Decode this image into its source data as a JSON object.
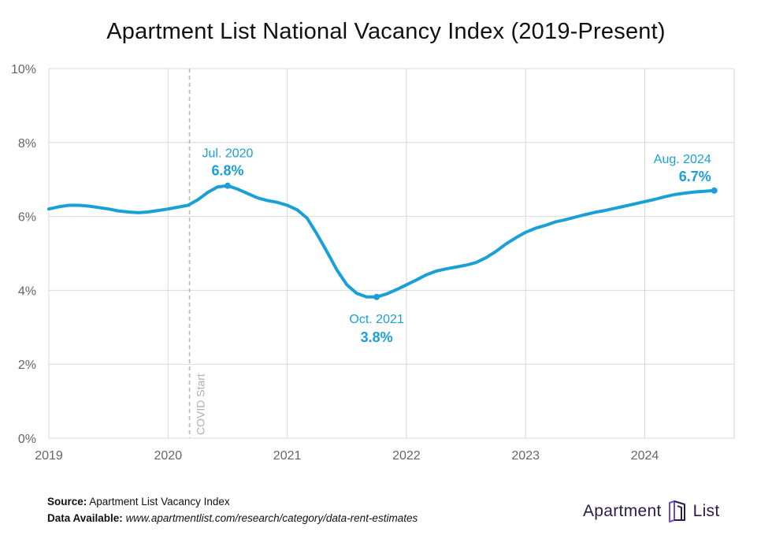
{
  "title": "Apartment List National Vacancy Index (2019-Present)",
  "footer": {
    "source_label": "Source:",
    "source_text": "Apartment List Vacancy Index",
    "data_label": "Data Available:",
    "data_url": "www.apartmentlist.com/research/category/data-rent-estimates"
  },
  "brand": {
    "word1": "Apartment",
    "word2": "List",
    "color": "#2b1b4d"
  },
  "chart_data": {
    "type": "line",
    "title": "Apartment List National Vacancy Index (2019-Present)",
    "xlabel": "",
    "ylabel": "",
    "xlim": [
      2019.0,
      2024.75
    ],
    "ylim": [
      0,
      10
    ],
    "grid": true,
    "line_color": "#1a9fd6",
    "x_ticks": [
      2019,
      2020,
      2021,
      2022,
      2023,
      2024
    ],
    "x_tick_labels": [
      "2019",
      "2020",
      "2021",
      "2022",
      "2023",
      "2024"
    ],
    "y_ticks": [
      0,
      2,
      4,
      6,
      8,
      10
    ],
    "y_tick_labels": [
      "0%",
      "2%",
      "4%",
      "6%",
      "8%",
      "10%"
    ],
    "reference_line": {
      "x": 2020.18,
      "label": "COVID Start"
    },
    "series": [
      {
        "x": [
          2019.0,
          2019.083,
          2019.167,
          2019.25,
          2019.333,
          2019.417,
          2019.5,
          2019.583,
          2019.667,
          2019.75,
          2019.833,
          2019.917,
          2020.0,
          2020.083,
          2020.167,
          2020.25,
          2020.333,
          2020.417,
          2020.5,
          2020.583,
          2020.667,
          2020.75,
          2020.833,
          2020.917,
          2021.0,
          2021.083,
          2021.167,
          2021.25,
          2021.333,
          2021.417,
          2021.5,
          2021.583,
          2021.667,
          2021.75,
          2021.833,
          2021.917,
          2022.0,
          2022.083,
          2022.167,
          2022.25,
          2022.333,
          2022.417,
          2022.5,
          2022.583,
          2022.667,
          2022.75,
          2022.833,
          2022.917,
          2023.0,
          2023.083,
          2023.167,
          2023.25,
          2023.333,
          2023.417,
          2023.5,
          2023.583,
          2023.667,
          2023.75,
          2023.833,
          2023.917,
          2024.0,
          2024.083,
          2024.167,
          2024.25,
          2024.333,
          2024.417,
          2024.5,
          2024.583
        ],
        "y": [
          6.2,
          6.26,
          6.3,
          6.3,
          6.28,
          6.24,
          6.2,
          6.15,
          6.12,
          6.1,
          6.12,
          6.16,
          6.2,
          6.25,
          6.3,
          6.45,
          6.65,
          6.8,
          6.83,
          6.74,
          6.62,
          6.5,
          6.43,
          6.38,
          6.3,
          6.18,
          5.95,
          5.52,
          5.05,
          4.55,
          4.15,
          3.92,
          3.82,
          3.82,
          3.9,
          4.02,
          4.15,
          4.28,
          4.42,
          4.52,
          4.58,
          4.63,
          4.68,
          4.75,
          4.88,
          5.05,
          5.25,
          5.42,
          5.57,
          5.68,
          5.76,
          5.85,
          5.91,
          5.98,
          6.05,
          6.11,
          6.16,
          6.22,
          6.28,
          6.34,
          6.4,
          6.46,
          6.53,
          6.59,
          6.63,
          6.66,
          6.68,
          6.7
        ]
      }
    ],
    "annotations": [
      {
        "x": 2020.5,
        "y": 6.83,
        "label": "Jul. 2020",
        "value": "6.8%",
        "anchor": "above"
      },
      {
        "x": 2021.75,
        "y": 3.82,
        "label": "Oct. 2021",
        "value": "3.8%",
        "anchor": "below"
      },
      {
        "x": 2024.583,
        "y": 6.7,
        "label": "Aug. 2024",
        "value": "6.7%",
        "anchor": "above-left"
      }
    ]
  }
}
